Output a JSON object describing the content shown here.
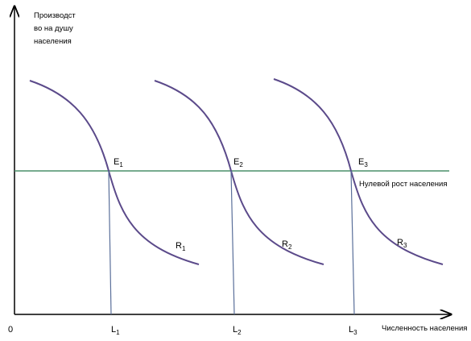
{
  "axes": {
    "origin": "0",
    "y_label": [
      "Производст",
      "во на душу",
      "населения"
    ],
    "x_label": "Численность населения"
  },
  "baseline_label": "Нулевой рост населения",
  "equilibria": [
    {
      "base": "E",
      "sub": "1"
    },
    {
      "base": "E",
      "sub": "2"
    },
    {
      "base": "E",
      "sub": "3"
    }
  ],
  "curves": [
    {
      "base": "R",
      "sub": "1"
    },
    {
      "base": "R",
      "sub": "2"
    },
    {
      "base": "R",
      "sub": "3"
    }
  ],
  "populations": [
    {
      "base": "L",
      "sub": "1"
    },
    {
      "base": "L",
      "sub": "2"
    },
    {
      "base": "L",
      "sub": "3"
    }
  ]
}
